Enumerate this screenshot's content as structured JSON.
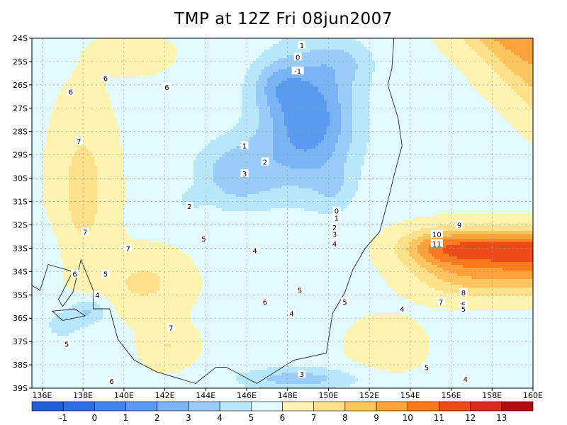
{
  "chart_data": {
    "type": "heatmap",
    "title": "TMP at 12Z Fri 08jun2007",
    "variable": "TMP",
    "xlim": [
      135.5,
      160
    ],
    "ylim": [
      -39,
      -24
    ],
    "x_ticks": [
      136,
      138,
      140,
      142,
      144,
      146,
      148,
      150,
      152,
      154,
      156,
      158,
      160
    ],
    "x_tick_labels": [
      "136E",
      "138E",
      "140E",
      "142E",
      "144E",
      "146E",
      "148E",
      "150E",
      "152E",
      "154E",
      "156E",
      "158E",
      "160E"
    ],
    "y_ticks": [
      -24,
      -25,
      -26,
      -27,
      -28,
      -29,
      -30,
      -31,
      -32,
      -33,
      -34,
      -35,
      -36,
      -37,
      -38,
      -39
    ],
    "y_tick_labels": [
      "24S",
      "25S",
      "26S",
      "27S",
      "28S",
      "29S",
      "30S",
      "31S",
      "32S",
      "33S",
      "34S",
      "35S",
      "36S",
      "37S",
      "38S",
      "39S"
    ],
    "grid": true,
    "contour_levels": [
      -1,
      0,
      1,
      2,
      3,
      4,
      5,
      6,
      7,
      8,
      9,
      10,
      11,
      12,
      13
    ],
    "colorbar": {
      "labels": [
        "-1",
        "0",
        "1",
        "2",
        "3",
        "4",
        "5",
        "6",
        "7",
        "8",
        "9",
        "10",
        "11",
        "12",
        "13"
      ],
      "colors": [
        "#1f5fd0",
        "#2e6fe0",
        "#3f85ec",
        "#5a9bf2",
        "#79b4f5",
        "#99ccf8",
        "#b8e6fb",
        "#e0fafe",
        "#fef3b0",
        "#fee18a",
        "#fdc55f",
        "#fba23c",
        "#f77a1f",
        "#ee4a1a",
        "#d92b1b",
        "#b01010"
      ]
    },
    "contour_labels": [
      {
        "x": 148.7,
        "y": -24.3,
        "text": "1"
      },
      {
        "x": 148.5,
        "y": -24.8,
        "text": "0"
      },
      {
        "x": 148.5,
        "y": -25.4,
        "text": "-1"
      },
      {
        "x": 139.1,
        "y": -25.7,
        "text": "6"
      },
      {
        "x": 142.1,
        "y": -26.1,
        "text": "6"
      },
      {
        "x": 137.4,
        "y": -26.3,
        "text": "6"
      },
      {
        "x": 137.8,
        "y": -28.4,
        "text": "7"
      },
      {
        "x": 145.9,
        "y": -28.6,
        "text": "1"
      },
      {
        "x": 146.9,
        "y": -29.3,
        "text": "2"
      },
      {
        "x": 145.9,
        "y": -29.8,
        "text": "3"
      },
      {
        "x": 143.2,
        "y": -31.2,
        "text": "2"
      },
      {
        "x": 150.4,
        "y": -31.4,
        "text": "0"
      },
      {
        "x": 150.4,
        "y": -31.7,
        "text": "1"
      },
      {
        "x": 150.3,
        "y": -32.1,
        "text": "2"
      },
      {
        "x": 150.3,
        "y": -32.4,
        "text": "3"
      },
      {
        "x": 150.3,
        "y": -32.8,
        "text": "4"
      },
      {
        "x": 138.1,
        "y": -32.3,
        "text": "7"
      },
      {
        "x": 143.9,
        "y": -32.6,
        "text": "5"
      },
      {
        "x": 156.4,
        "y": -32.0,
        "text": "9"
      },
      {
        "x": 155.3,
        "y": -32.4,
        "text": "10"
      },
      {
        "x": 155.3,
        "y": -32.8,
        "text": "11"
      },
      {
        "x": 140.2,
        "y": -33.0,
        "text": "7"
      },
      {
        "x": 146.4,
        "y": -33.1,
        "text": "4"
      },
      {
        "x": 137.6,
        "y": -34.1,
        "text": "6"
      },
      {
        "x": 139.1,
        "y": -34.1,
        "text": "5"
      },
      {
        "x": 148.6,
        "y": -34.8,
        "text": "5"
      },
      {
        "x": 156.6,
        "y": -34.9,
        "text": "8"
      },
      {
        "x": 138.7,
        "y": -35.0,
        "text": "4"
      },
      {
        "x": 146.9,
        "y": -35.3,
        "text": "6"
      },
      {
        "x": 155.5,
        "y": -35.3,
        "text": "7"
      },
      {
        "x": 156.6,
        "y": -35.4,
        "text": "6"
      },
      {
        "x": 156.6,
        "y": -35.6,
        "text": "5"
      },
      {
        "x": 153.6,
        "y": -35.6,
        "text": "4"
      },
      {
        "x": 150.8,
        "y": -35.3,
        "text": "5"
      },
      {
        "x": 148.2,
        "y": -35.8,
        "text": "4"
      },
      {
        "x": 142.3,
        "y": -36.4,
        "text": "7"
      },
      {
        "x": 137.2,
        "y": -37.1,
        "text": "5"
      },
      {
        "x": 154.8,
        "y": -38.1,
        "text": "5"
      },
      {
        "x": 148.7,
        "y": -38.4,
        "text": "3"
      },
      {
        "x": 139.4,
        "y": -38.7,
        "text": "6"
      },
      {
        "x": 156.7,
        "y": -38.6,
        "text": "4"
      }
    ]
  }
}
